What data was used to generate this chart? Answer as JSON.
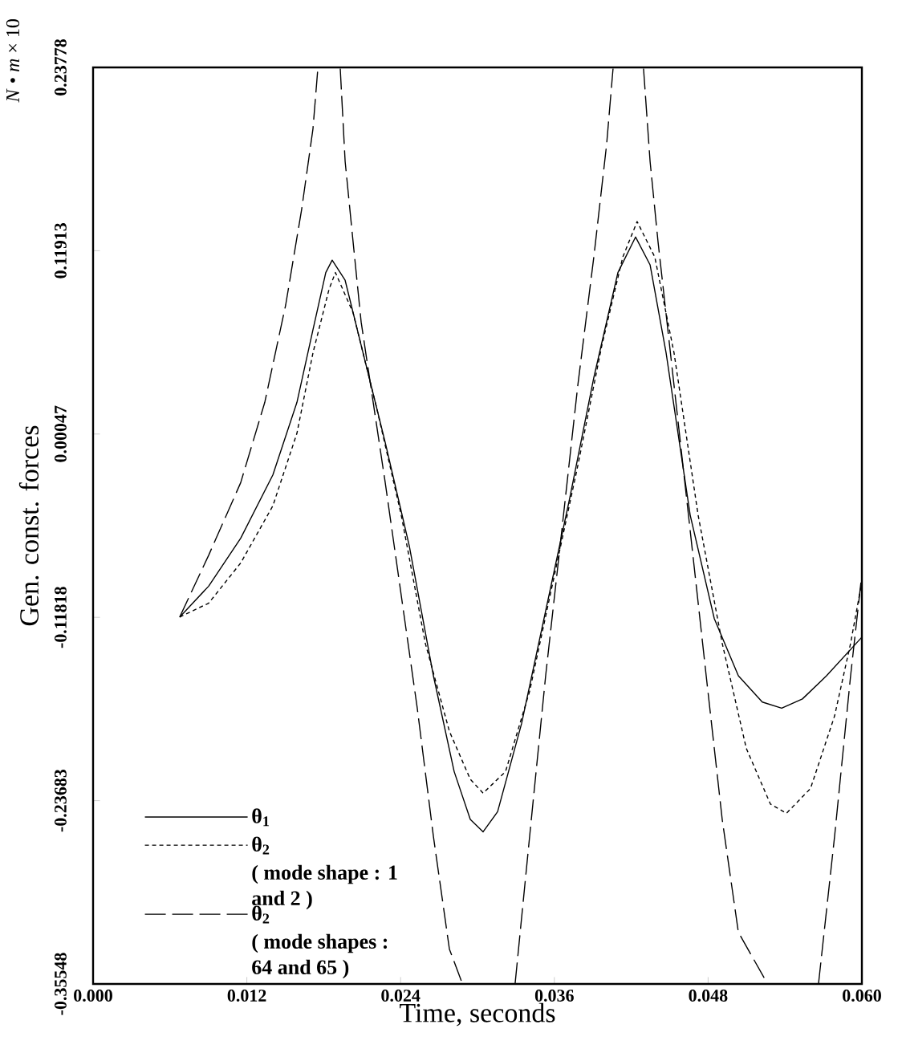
{
  "chart_data": {
    "type": "line",
    "xlabel": "Time, seconds",
    "ylabel": "Gen. const. forces",
    "annotations": [
      "( mode shape : 1 and 2 )",
      "( mode shapes : 64 and 65 )",
      "*N* • *m* × 10"
    ],
    "xlim": [
      0,
      0.06
    ],
    "ylim": [
      -0.35548,
      0.23778
    ],
    "xticks": [
      {
        "value": 0,
        "label": "0.000"
      },
      0.012,
      0.024,
      0.036,
      0.048,
      {
        "value": 0.06,
        "label": "0.060"
      }
    ],
    "yticks": [
      -0.35548,
      -0.23683,
      -0.11818,
      0.00047,
      0.11913,
      0.23778
    ],
    "legend": "bottom left",
    "series": [
      {
        "name": "θ$_{1}$",
        "color": "#000000",
        "line_style": "solid",
        "x": [
          0.00676,
          0.00902,
          0.01152,
          0.01403,
          0.01591,
          0.01716,
          0.01816,
          0.01866,
          0.01967,
          0.02092,
          0.0228,
          0.02468,
          0.02656,
          0.02818,
          0.02944,
          0.03044,
          0.03157,
          0.03344,
          0.03532,
          0.0372,
          0.03908,
          0.04096,
          0.04234,
          0.04347,
          0.04472,
          0.0466,
          0.04848,
          0.05036,
          0.05223,
          0.05374,
          0.05536,
          0.05724,
          0.06
        ],
        "values": [
          -0.118,
          -0.098,
          -0.067,
          -0.026,
          0.021,
          0.068,
          0.105,
          0.113,
          0.1,
          0.058,
          -0.005,
          -0.072,
          -0.156,
          -0.218,
          -0.249,
          -0.257,
          -0.244,
          -0.187,
          -0.114,
          -0.041,
          0.037,
          0.105,
          0.128,
          0.11,
          0.053,
          -0.052,
          -0.119,
          -0.156,
          -0.173,
          -0.177,
          -0.171,
          -0.156,
          -0.131
        ]
      },
      {
        "name": "θ$_{2}$",
        "color": "#000000",
        "line_style": "dotted",
        "x": [
          0.00676,
          0.00902,
          0.01152,
          0.01403,
          0.01591,
          0.01716,
          0.01841,
          0.01891,
          0.02029,
          0.02217,
          0.02405,
          0.02593,
          0.02781,
          0.02944,
          0.03044,
          0.03219,
          0.03407,
          0.03595,
          0.03783,
          0.03971,
          0.04134,
          0.04246,
          0.04384,
          0.04534,
          0.04722,
          0.0491,
          0.05098,
          0.05286,
          0.05411,
          0.05599,
          0.05787,
          0.05912,
          0.06
        ],
        "values": [
          -0.118,
          -0.109,
          -0.083,
          -0.046,
          0.001,
          0.053,
          0.094,
          0.105,
          0.079,
          0.016,
          -0.052,
          -0.135,
          -0.192,
          -0.223,
          -0.232,
          -0.218,
          -0.166,
          -0.093,
          -0.02,
          0.058,
          0.115,
          0.138,
          0.115,
          0.053,
          -0.052,
          -0.135,
          -0.203,
          -0.239,
          -0.245,
          -0.229,
          -0.182,
          -0.135,
          -0.095
        ]
      },
      {
        "name": "θ$_{2}$",
        "color": "#000000",
        "line_style": "dashed",
        "x": [
          0.00676,
          0.00902,
          0.01152,
          0.0134,
          0.01503,
          0.01628,
          0.01716,
          0.01754,
          0.0184,
          0.01929,
          0.01967,
          0.02029,
          0.02092,
          0.0228,
          0.02405,
          0.0253,
          0.02656,
          0.02781,
          0.02881,
          0.031,
          0.03294,
          0.03407,
          0.03532,
          0.03658,
          0.03783,
          0.03908,
          0.04008,
          0.04058,
          0.0418,
          0.04296,
          0.04347,
          0.04409,
          0.04534,
          0.0466,
          0.04785,
          0.0491,
          0.05036,
          0.05261,
          0.055,
          0.05662,
          0.05787,
          0.05912,
          0.06
        ],
        "values": [
          -0.118,
          -0.078,
          -0.031,
          0.021,
          0.084,
          0.146,
          0.198,
          0.237,
          null,
          0.237,
          0.177,
          0.125,
          0.073,
          -0.031,
          -0.104,
          -0.177,
          -0.26,
          -0.333,
          -0.355,
          null,
          -0.355,
          -0.26,
          -0.156,
          -0.062,
          0.032,
          0.115,
          0.188,
          0.237,
          null,
          0.237,
          0.177,
          0.125,
          0.032,
          -0.062,
          -0.156,
          -0.249,
          -0.322,
          -0.355,
          null,
          -0.355,
          -0.26,
          -0.156,
          -0.09
        ]
      }
    ]
  }
}
